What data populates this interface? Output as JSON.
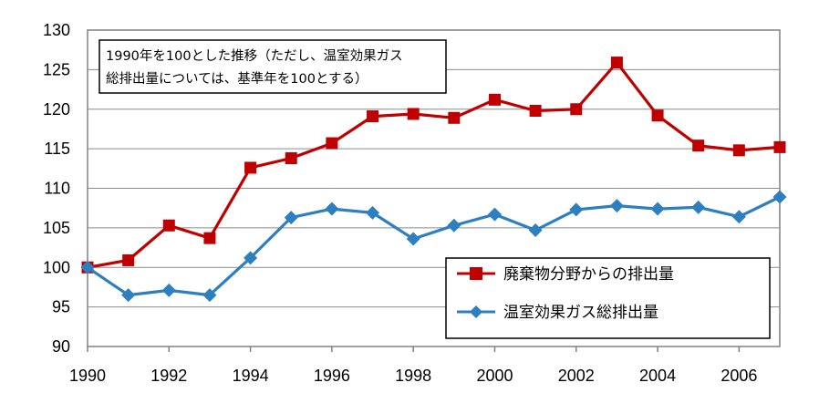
{
  "chart_data": {
    "type": "line",
    "title": "",
    "xlabel": "",
    "ylabel": "",
    "x": [
      1990,
      1991,
      1992,
      1993,
      1994,
      1995,
      1996,
      1997,
      1998,
      1999,
      2000,
      2001,
      2002,
      2003,
      2004,
      2005,
      2006,
      2007
    ],
    "x_tick_labels": [
      "1990",
      "1992",
      "1994",
      "1996",
      "1998",
      "2000",
      "2002",
      "2004",
      "2006"
    ],
    "ylim": [
      90,
      130
    ],
    "y_ticks": [
      90,
      95,
      100,
      105,
      110,
      115,
      120,
      125,
      130
    ],
    "grid": "horizontal",
    "legend_position": "bottom-right",
    "note_lines": [
      "1990年を100とした推移（ただし、温室効果ガス",
      "総排出量については、基準年を100とする）"
    ],
    "series": [
      {
        "name": "廃棄物分野からの排出量",
        "color": "#c00000",
        "marker": "square",
        "values": [
          100.0,
          100.9,
          105.3,
          103.7,
          112.6,
          113.8,
          115.7,
          119.1,
          119.4,
          118.9,
          121.2,
          119.8,
          120.0,
          125.9,
          119.2,
          115.4,
          114.8,
          115.2
        ]
      },
      {
        "name": "温室効果ガス総排出量",
        "color": "#2e7fc0",
        "marker": "diamond",
        "values": [
          100.0,
          96.5,
          97.1,
          96.5,
          101.2,
          106.3,
          107.4,
          106.9,
          103.6,
          105.3,
          106.7,
          104.7,
          107.3,
          107.8,
          107.4,
          107.6,
          106.4,
          108.9
        ]
      }
    ]
  }
}
